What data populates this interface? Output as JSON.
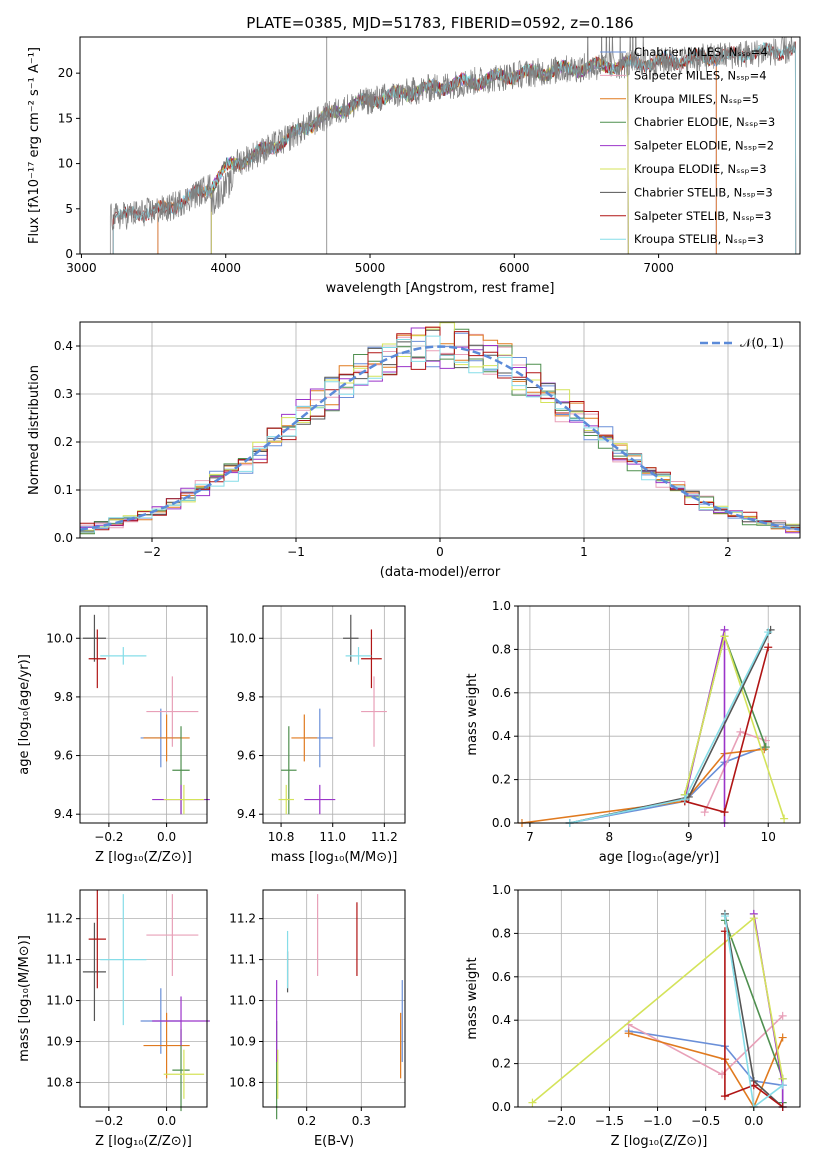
{
  "colors": {
    "chabrier_miles": "#6a8fd8",
    "salpeter_miles": "#e8a0b8",
    "kroupa_miles": "#e07a1f",
    "chabrier_elodie": "#4f8f4f",
    "salpeter_elodie": "#9b34c9",
    "kroupa_elodie": "#d4e35a",
    "chabrier_stelib": "#555555",
    "salpeter_stelib": "#b01515",
    "kroupa_stelib": "#86dde8",
    "normal_curve": "#5b8ad8"
  },
  "chart_data": [
    {
      "id": "spectrum",
      "type": "line",
      "title": "PLATE=0385, MJD=51783, FIBERID=0592, z=0.186",
      "xlabel": "wavelength [Angstrom, rest frame]",
      "ylabel": "Flux [fλ10⁻¹⁷ erg cm⁻² s⁻¹ A⁻¹]",
      "xlim": [
        2990,
        7980
      ],
      "ylim": [
        0,
        24
      ],
      "xticks": [
        "3000",
        "4000",
        "5000",
        "6000",
        "7000"
      ],
      "yticks": [
        "0",
        "5",
        "10",
        "15",
        "20"
      ],
      "grid": false,
      "legend_position": "top-right",
      "legend": [
        {
          "key": "chabrier_miles",
          "label": "Chabrier MILES, Nₛₛₚ=4"
        },
        {
          "key": "salpeter_miles",
          "label": "Salpeter MILES, Nₛₛₚ=4"
        },
        {
          "key": "kroupa_miles",
          "label": "Kroupa MILES, Nₛₛₚ=5"
        },
        {
          "key": "chabrier_elodie",
          "label": "Chabrier ELODIE, Nₛₛₚ=3"
        },
        {
          "key": "salpeter_elodie",
          "label": "Salpeter ELODIE, Nₛₛₚ=2"
        },
        {
          "key": "kroupa_elodie",
          "label": "Kroupa ELODIE, Nₛₛₚ=3"
        },
        {
          "key": "chabrier_stelib",
          "label": "Chabrier STELIB, Nₛₛₚ=3"
        },
        {
          "key": "salpeter_stelib",
          "label": "Salpeter STELIB, Nₛₛₚ=3"
        },
        {
          "key": "kroupa_stelib",
          "label": "Kroupa STELIB, Nₛₛₚ=3"
        }
      ],
      "continuum": {
        "x": [
          3200,
          3400,
          3600,
          3900,
          4000,
          4200,
          4400,
          4600,
          4800,
          5000,
          5300,
          5600,
          6000,
          6400,
          6800,
          7200,
          7500,
          7900
        ],
        "y": [
          4.0,
          4.5,
          5.0,
          7.5,
          9.5,
          11.0,
          12.5,
          14.5,
          16.0,
          17.0,
          18.0,
          18.8,
          19.8,
          20.5,
          21.0,
          21.5,
          22.0,
          22.5
        ]
      },
      "model_starts": {
        "chabrier_miles": 3530,
        "salpeter_miles": 3530,
        "kroupa_miles": 3530,
        "chabrier_elodie": 3900,
        "salpeter_elodie": 3900,
        "kroupa_elodie": 3900,
        "chabrier_stelib": 3220,
        "salpeter_stelib": 3220,
        "kroupa_stelib": 3220
      },
      "model_ends": {
        "miles": 7400,
        "elodie": 6790,
        "stelib": 7950
      }
    },
    {
      "id": "residuals",
      "type": "bar",
      "xlabel": "(data-model)/error",
      "ylabel": "Normed distribution",
      "xlim": [
        -2.5,
        2.5
      ],
      "ylim": [
        0,
        0.45
      ],
      "xticks": [
        "−2",
        "−1",
        "0",
        "1",
        "2"
      ],
      "yticks": [
        "0.0",
        "0.1",
        "0.2",
        "0.3",
        "0.4"
      ],
      "grid": true,
      "legend_position": "top-right",
      "legend_label": "𝒩(0, 1)",
      "bin_width": 0.1
    },
    {
      "id": "age-vs-z",
      "type": "scatter",
      "xlabel": "Z [log₁₀(Z/Z⊙)]",
      "ylabel": "age  [log₁₀(age/yr)]",
      "xlim": [
        -0.3,
        0.14
      ],
      "ylim": [
        9.37,
        10.11
      ],
      "xticks": [
        "−0.2",
        "0.0"
      ],
      "yticks": [
        "9.4",
        "9.6",
        "9.8",
        "10.0"
      ],
      "grid": true
    },
    {
      "id": "age-vs-mass",
      "type": "scatter",
      "xlabel": "mass [log₁₀(M/M⊙)]",
      "xlim": [
        10.73,
        11.28
      ],
      "ylim": [
        9.37,
        10.11
      ],
      "xticks": [
        "10.8",
        "11.0",
        "11.2"
      ],
      "yticks": [
        "9.4",
        "9.6",
        "9.8",
        "10.0"
      ],
      "grid": true
    },
    {
      "id": "weight-vs-age",
      "type": "line",
      "xlabel": "age  [log₁₀(age/yr)]",
      "ylabel": "mass weight",
      "xlim": [
        6.85,
        10.4
      ],
      "ylim": [
        0,
        1
      ],
      "xticks": [
        "7",
        "8",
        "9",
        "10"
      ],
      "yticks": [
        "0.0",
        "0.2",
        "0.4",
        "0.6",
        "0.8",
        "1.0"
      ],
      "grid": true,
      "series": [
        {
          "key": "chabrier_miles",
          "x": [
            7.5,
            8.95,
            9.45,
            9.95
          ],
          "y": [
            0.0,
            0.1,
            0.28,
            0.35
          ]
        },
        {
          "key": "salpeter_miles",
          "x": [
            9.2,
            9.65,
            9.97
          ],
          "y": [
            0.05,
            0.42,
            0.38
          ]
        },
        {
          "key": "kroupa_miles",
          "x": [
            6.9,
            8.95,
            9.45,
            9.95
          ],
          "y": [
            0.0,
            0.1,
            0.32,
            0.34
          ]
        },
        {
          "key": "chabrier_elodie",
          "x": [
            8.95,
            9.45,
            9.97
          ],
          "y": [
            0.13,
            0.86,
            0.35
          ]
        },
        {
          "key": "salpeter_elodie",
          "x": [
            8.95,
            9.45,
            9.45
          ],
          "y": [
            0.11,
            0.89,
            0.0
          ]
        },
        {
          "key": "kroupa_elodie",
          "x": [
            8.95,
            9.45,
            10.2
          ],
          "y": [
            0.13,
            0.86,
            0.02
          ]
        },
        {
          "key": "chabrier_stelib",
          "x": [
            7.5,
            9.0,
            10.03
          ],
          "y": [
            0.0,
            0.12,
            0.89
          ]
        },
        {
          "key": "salpeter_stelib",
          "x": [
            8.95,
            9.45,
            10.0
          ],
          "y": [
            0.1,
            0.05,
            0.81
          ]
        },
        {
          "key": "kroupa_stelib",
          "x": [
            7.5,
            8.95,
            10.0
          ],
          "y": [
            0.0,
            0.11,
            0.88
          ]
        }
      ]
    },
    {
      "id": "mass-vs-z",
      "type": "scatter",
      "xlabel": "Z [log₁₀(Z/Z⊙)]",
      "ylabel": "mass [log₁₀(M/M⊙)]",
      "xlim": [
        -0.3,
        0.14
      ],
      "ylim": [
        10.74,
        11.27
      ],
      "xticks": [
        "−0.2",
        "0.0"
      ],
      "yticks": [
        "10.8",
        "10.9",
        "11.0",
        "11.1",
        "11.2"
      ],
      "grid": true
    },
    {
      "id": "mass-vs-ebv",
      "type": "scatter",
      "xlabel": "E(B-V)",
      "xlim": [
        0.12,
        0.38
      ],
      "ylim": [
        10.74,
        11.27
      ],
      "xticks": [
        "0.2",
        "0.3"
      ],
      "yticks": [
        "10.8",
        "10.9",
        "11.0",
        "11.1",
        "11.2"
      ],
      "grid": true
    },
    {
      "id": "weight-vs-z",
      "type": "line",
      "xlabel": "Z [log₁₀(Z/Z⊙)]",
      "ylabel": "mass weight",
      "xlim": [
        -2.45,
        0.48
      ],
      "ylim": [
        0,
        1
      ],
      "xticks": [
        "−2.0",
        "−1.5",
        "−1.0",
        "−0.5",
        "0.0"
      ],
      "yticks": [
        "0.0",
        "0.2",
        "0.4",
        "0.6",
        "0.8",
        "1.0"
      ],
      "grid": true,
      "series": [
        {
          "key": "chabrier_miles",
          "x": [
            -1.3,
            -0.3,
            0.0,
            0.3
          ],
          "y": [
            0.35,
            0.28,
            0.12,
            0.1
          ]
        },
        {
          "key": "salpeter_miles",
          "x": [
            -1.3,
            -0.33,
            0.3
          ],
          "y": [
            0.38,
            0.15,
            0.42
          ]
        },
        {
          "key": "kroupa_miles",
          "x": [
            -1.3,
            -0.3,
            0.0,
            0.3
          ],
          "y": [
            0.34,
            0.22,
            0.0,
            0.32
          ]
        },
        {
          "key": "chabrier_elodie",
          "x": [
            -0.3,
            0.3,
            0.3
          ],
          "y": [
            0.86,
            0.13,
            0.02
          ]
        },
        {
          "key": "salpeter_elodie",
          "x": [
            0.0,
            0.3,
            0.3
          ],
          "y": [
            0.89,
            0.1,
            0.0
          ]
        },
        {
          "key": "kroupa_elodie",
          "x": [
            -2.3,
            0.0,
            0.3
          ],
          "y": [
            0.02,
            0.87,
            0.13
          ]
        },
        {
          "key": "chabrier_stelib",
          "x": [
            -0.3,
            0.0,
            0.3
          ],
          "y": [
            0.89,
            0.12,
            0.0
          ]
        },
        {
          "key": "salpeter_stelib",
          "x": [
            -0.3,
            -0.3,
            0.0,
            0.3
          ],
          "y": [
            0.81,
            0.05,
            0.1,
            0.0
          ]
        },
        {
          "key": "kroupa_stelib",
          "x": [
            -0.3,
            0.0,
            0.3
          ],
          "y": [
            0.88,
            0.0,
            0.1
          ]
        }
      ]
    }
  ],
  "error_points": {
    "order": [
      "chabrier_miles",
      "salpeter_miles",
      "kroupa_miles",
      "chabrier_elodie",
      "salpeter_elodie",
      "kroupa_elodie",
      "chabrier_stelib",
      "salpeter_stelib",
      "kroupa_stelib"
    ],
    "Z": [
      -0.02,
      0.02,
      0.0,
      0.05,
      0.05,
      0.06,
      -0.25,
      -0.24,
      -0.15
    ],
    "Z_err": [
      0.07,
      0.09,
      0.08,
      0.03,
      0.1,
      0.07,
      0.04,
      0.03,
      0.08
    ],
    "age": [
      9.66,
      9.75,
      9.66,
      9.55,
      9.45,
      9.45,
      10.0,
      9.93,
      9.94
    ],
    "age_err": [
      0.1,
      0.12,
      0.08,
      0.15,
      0.05,
      0.05,
      0.08,
      0.1,
      0.03
    ],
    "mass": [
      10.95,
      11.16,
      10.89,
      10.83,
      10.95,
      10.82,
      11.07,
      11.15,
      11.1
    ],
    "mass_err": [
      0.05,
      0.05,
      0.05,
      0.03,
      0.06,
      0.03,
      0.03,
      0.04,
      0.05
    ],
    "mass_bar_err": [
      0.08,
      0.1,
      0.08,
      0.1,
      0.06,
      0.06,
      0.12,
      0.12,
      0.16
    ],
    "ebv": [
      0.375,
      0.22,
      0.372,
      0.145,
      0.145,
      0.147,
      0.165,
      0.292,
      0.165
    ],
    "ebv_mass_err": [
      0.1,
      0.1,
      0.08,
      0.12,
      0.1,
      0.06,
      0.05,
      0.09,
      0.07
    ]
  }
}
